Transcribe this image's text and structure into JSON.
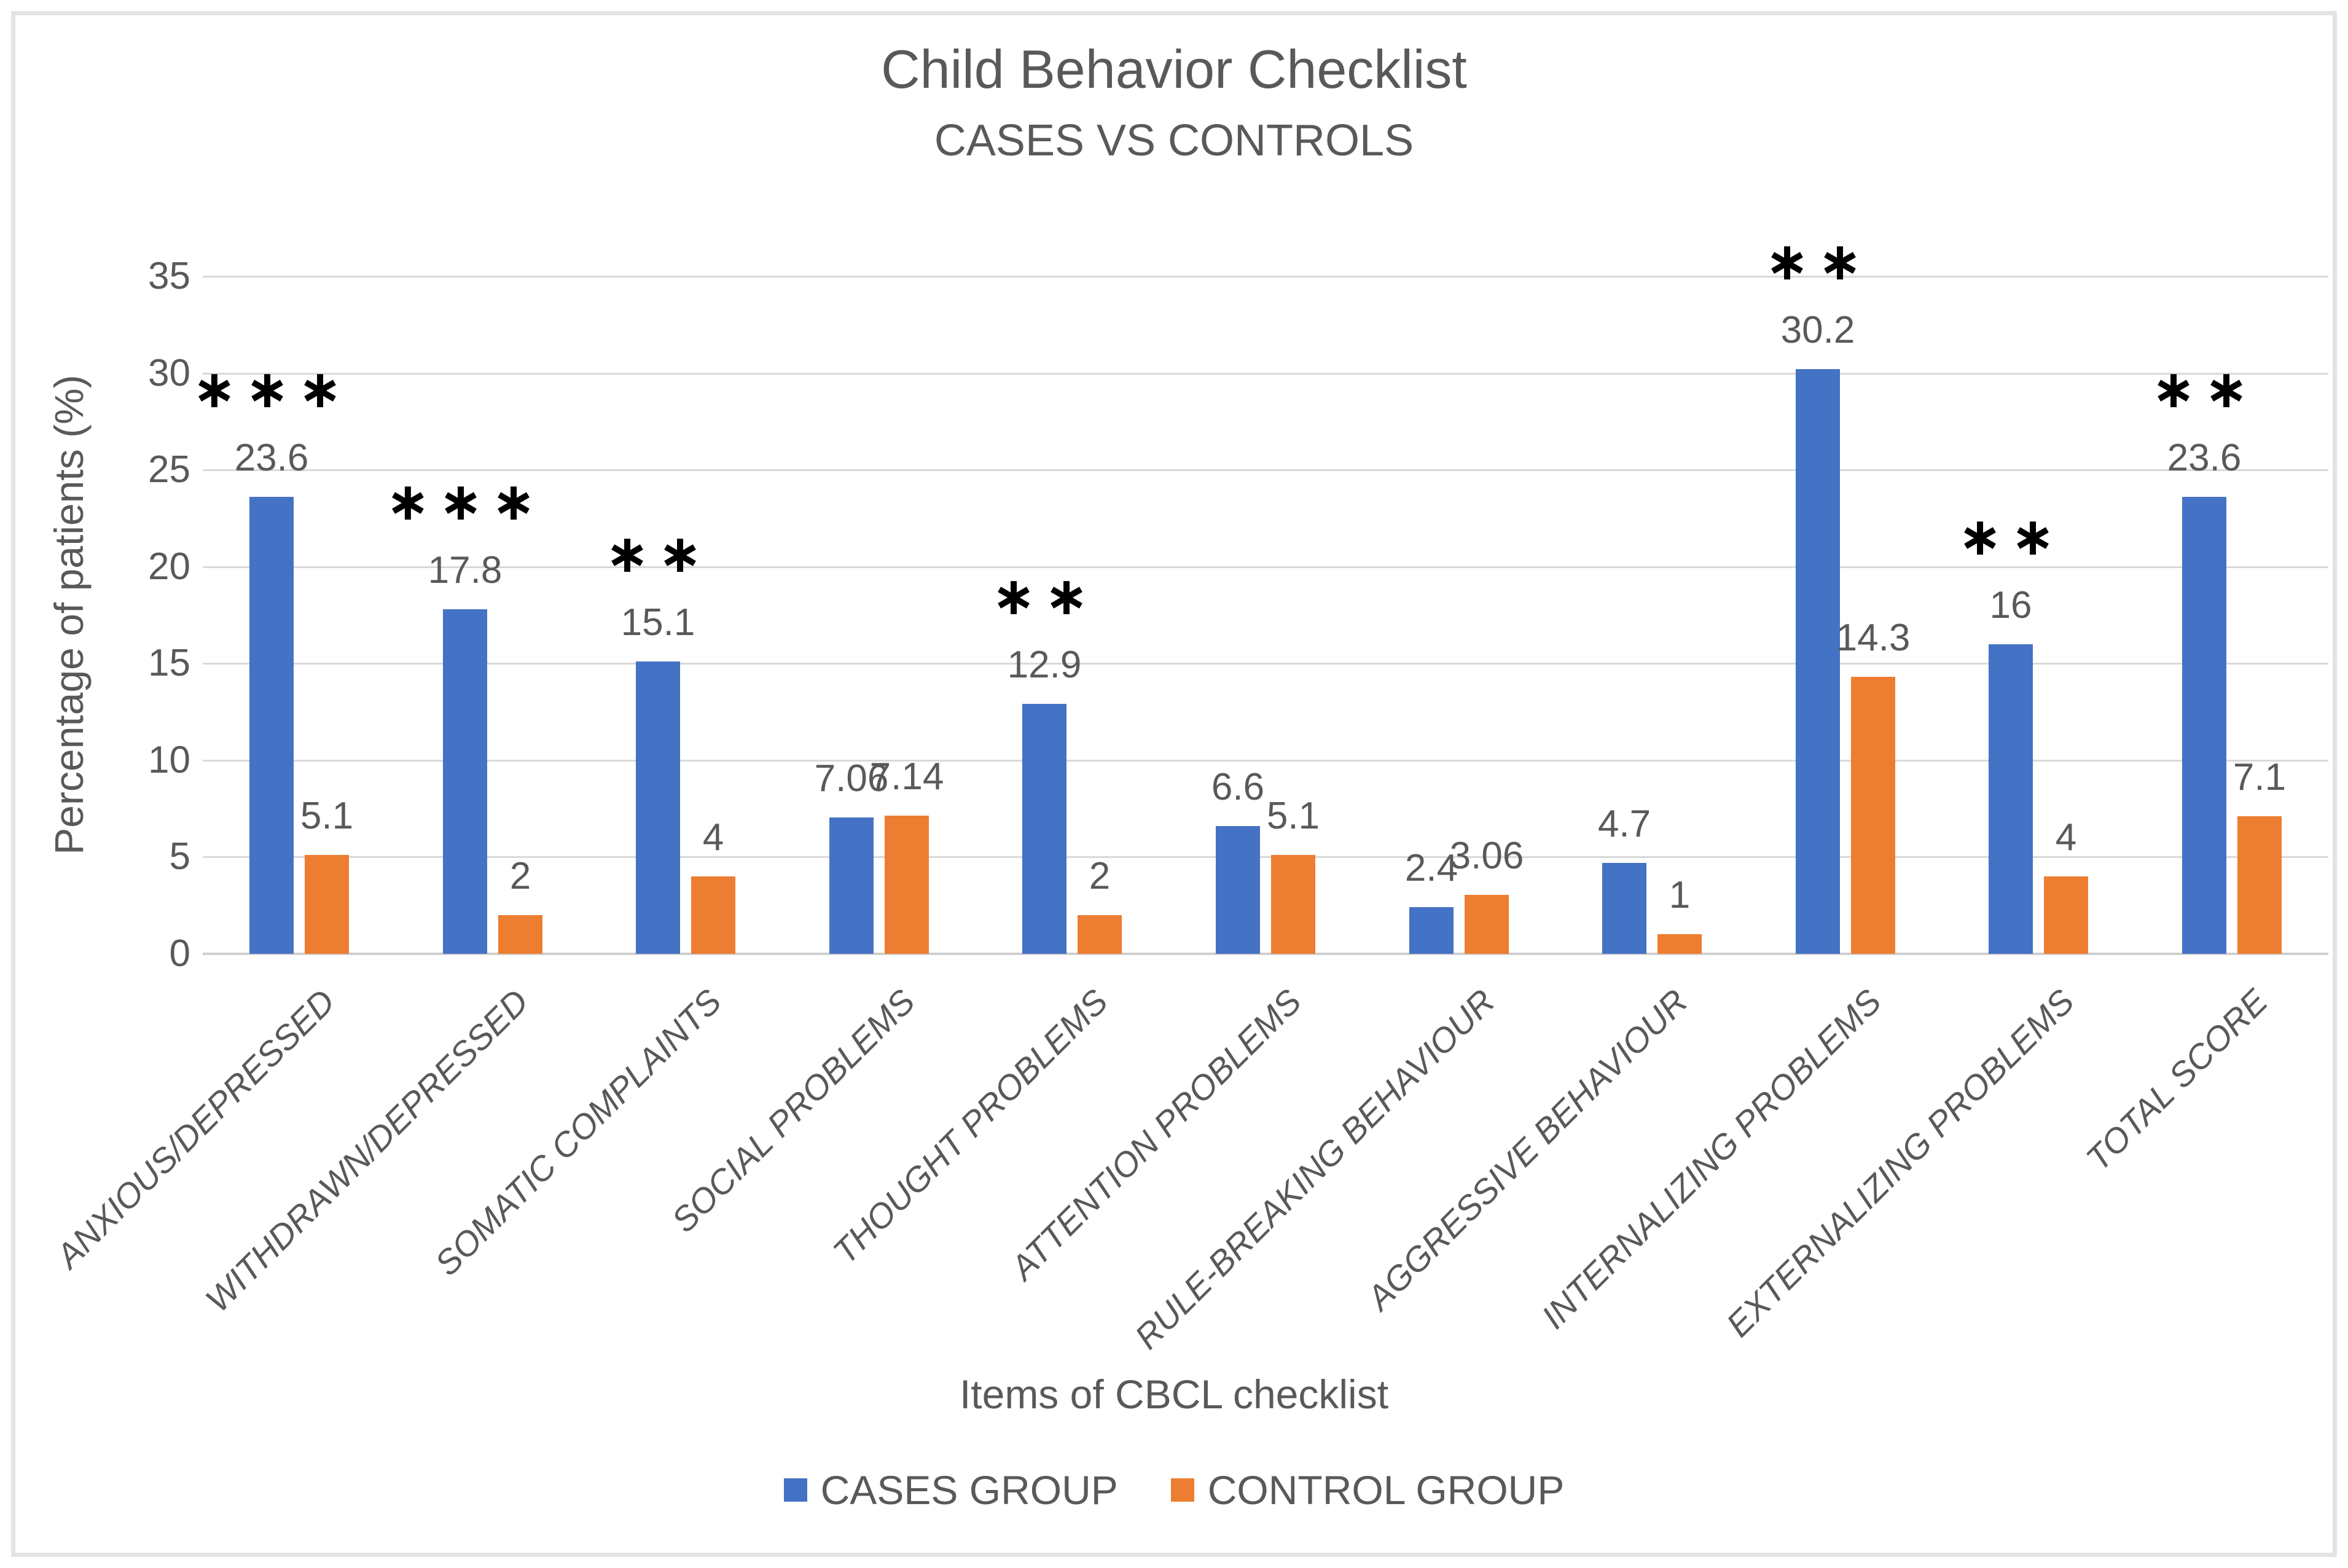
{
  "title": "Child Behavior Checklist",
  "subtitle": "CASES VS CONTROLS",
  "colors": {
    "cases_blue": "#4472C4",
    "control_orange": "#ED7D31",
    "text_gray": "#595959",
    "gridline_gray": "#D9D9D9",
    "axis_gray": "#CFCFCF",
    "significance_black": "#000000",
    "frame_gray": "#E3E3E3"
  },
  "chart_data": {
    "type": "bar",
    "title": "Child Behavior Checklist",
    "subtitle": "CASES VS CONTROLS",
    "xlabel": "Items of CBCL checklist",
    "ylabel": "Percentage of patients (%)",
    "ylim": [
      0,
      35
    ],
    "yticks": [
      0,
      5,
      10,
      15,
      20,
      25,
      30,
      35
    ],
    "grid": true,
    "legend_position": "bottom",
    "categories": [
      "ANXIOUS/DEPRESSED",
      "WITHDRAWN/DEPRESSED",
      "SOMATIC COMPLAINTS",
      "SOCIAL PROBLEMS",
      "THOUGHT PROBLEMS",
      "ATTENTION PROBLEMS",
      "RULE-BREAKING BEHAVIOUR",
      "AGGRESSIVE BEHAVIOUR",
      "INTERNALIZING PROBLEMS",
      "EXTERNALIZING PROBLEMS",
      "TOTAL SCORE"
    ],
    "series": [
      {
        "name": "CASES GROUP",
        "color": "#4472C4",
        "values": [
          23.6,
          17.8,
          15.1,
          7.06,
          12.9,
          6.6,
          2.4,
          4.7,
          30.2,
          16,
          23.6
        ],
        "labels": [
          "23.6",
          "17.8",
          "15.1",
          "7.06",
          "12.9",
          "6.6",
          "2.4",
          "4.7",
          "30.2",
          "16",
          "23.6"
        ]
      },
      {
        "name": "CONTROL GROUP",
        "color": "#ED7D31",
        "values": [
          5.1,
          2,
          4,
          7.14,
          2,
          5.1,
          3.06,
          1,
          14.3,
          4,
          7.1
        ],
        "labels": [
          "5.1",
          "2",
          "4",
          "7.14",
          "2",
          "5.1",
          "3.06",
          "1",
          "14.3",
          "4",
          "7.1"
        ]
      }
    ],
    "significance": [
      "***",
      "***",
      "**",
      "",
      "**",
      "",
      "",
      "",
      "**",
      "**",
      "**"
    ]
  },
  "legend": {
    "items": [
      {
        "label": "CASES GROUP",
        "color": "#4472C4"
      },
      {
        "label": "CONTROL GROUP",
        "color": "#ED7D31"
      }
    ]
  }
}
